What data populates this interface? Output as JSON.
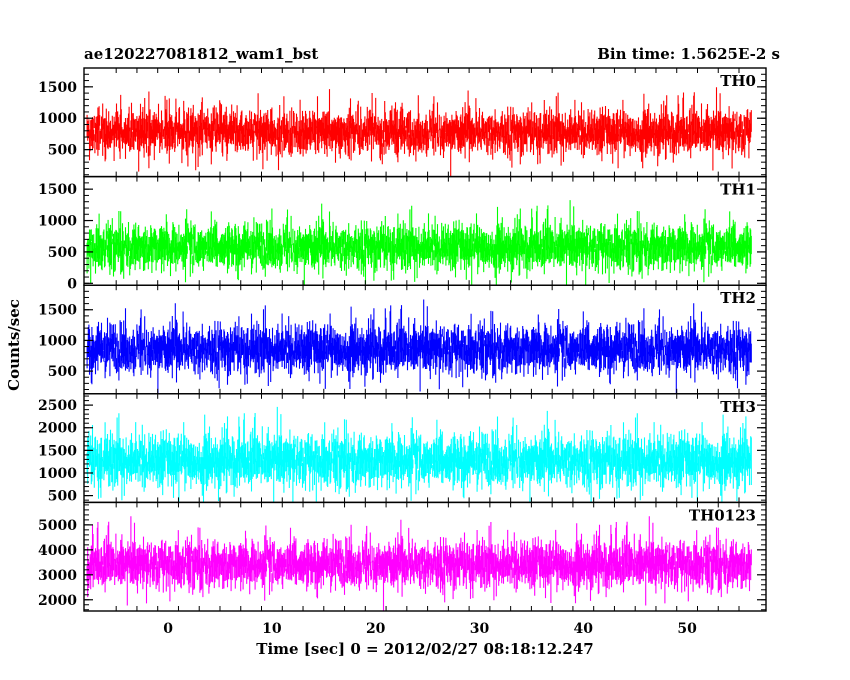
{
  "header": {
    "title": "ae120227081812_wam1_bst",
    "bin_time": "Bin time: 1.5625E-2 s"
  },
  "chart_data": {
    "type": "line",
    "title": "ae120227081812_wam1_bst",
    "xlabel": "Time [sec] 0 = 2012/02/27 08:18:12.247",
    "ylabel": "Counts/sec",
    "xlim": [
      -8.1,
      57.6
    ],
    "x_range": [
      -7.8,
      56.2
    ],
    "x_ticks": [
      0,
      10,
      20,
      30,
      40,
      50
    ],
    "x_tick_labels": [
      "0",
      "10",
      "20",
      "30",
      "40",
      "50"
    ],
    "bin_time_s": 0.015625,
    "grid": false,
    "panels": [
      {
        "name": "TH0",
        "color": "#ff0000",
        "ylim": [
          70,
          1800
        ],
        "mean": 780,
        "spread": 230,
        "ticks": [
          500,
          1000,
          1500
        ],
        "tick_labels": [
          "500",
          "1000",
          "1500"
        ]
      },
      {
        "name": "TH1",
        "color": "#00ff00",
        "ylim": [
          -30,
          1700
        ],
        "mean": 580,
        "spread": 240,
        "ticks": [
          0,
          500,
          1000,
          1500
        ],
        "tick_labels": [
          "0",
          "500",
          "1000",
          "1500"
        ]
      },
      {
        "name": "TH2",
        "color": "#0000ff",
        "ylim": [
          130,
          1900
        ],
        "mean": 860,
        "spread": 260,
        "ticks": [
          500,
          1000,
          1500
        ],
        "tick_labels": [
          "500",
          "1000",
          "1500"
        ]
      },
      {
        "name": "TH3",
        "color": "#00ffff",
        "ylim": [
          350,
          2750
        ],
        "mean": 1280,
        "spread": 380,
        "ticks": [
          500,
          1000,
          1500,
          2000,
          2500
        ],
        "tick_labels": [
          "500",
          "1000",
          "1500",
          "2000",
          "2500"
        ]
      },
      {
        "name": "TH0123",
        "color": "#ff00ff",
        "ylim": [
          1550,
          5900
        ],
        "mean": 3420,
        "spread": 620,
        "ticks": [
          2000,
          3000,
          4000,
          5000
        ],
        "tick_labels": [
          "2000",
          "3000",
          "4000",
          "5000"
        ]
      }
    ]
  }
}
